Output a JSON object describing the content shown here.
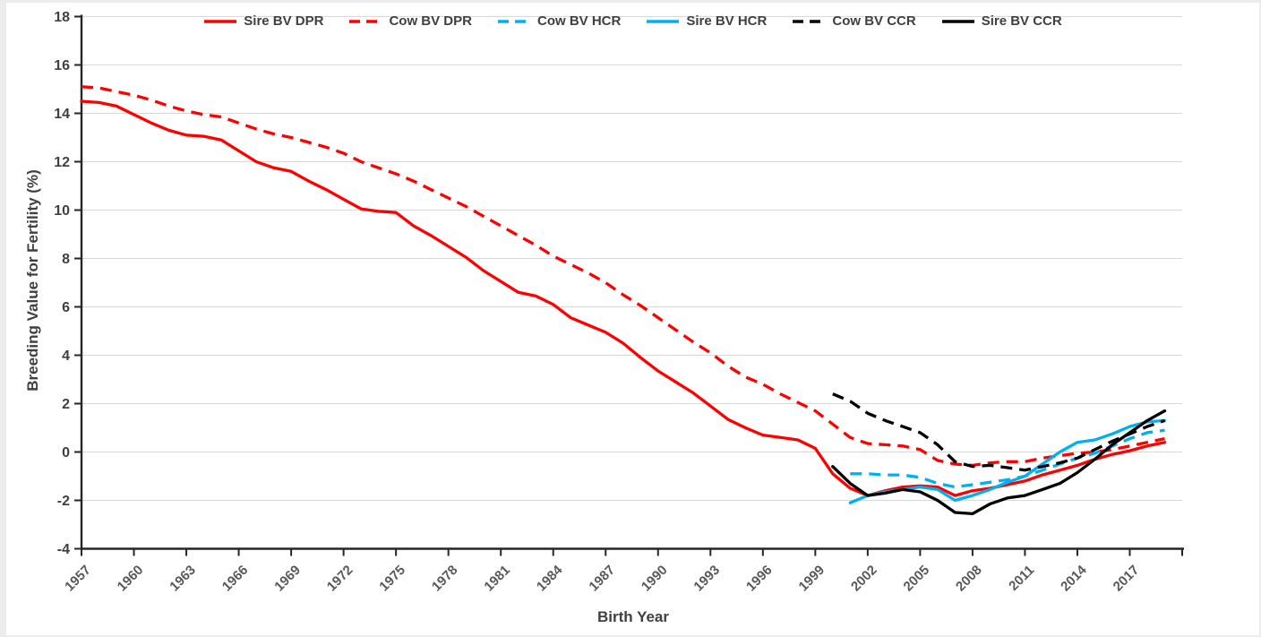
{
  "figure": {
    "background": "#ffffff",
    "border_color": "#ececec"
  },
  "chart_data": {
    "type": "line",
    "title": "",
    "xlabel": "Birth Year",
    "ylabel": "Breeding Value for Fertility (%)",
    "xlim": [
      1957,
      2020
    ],
    "ylim": [
      -4,
      18
    ],
    "ytick_step": 2,
    "yticks": [
      -4,
      -2,
      0,
      2,
      4,
      6,
      8,
      10,
      12,
      14,
      16,
      18
    ],
    "xticks": [
      1957,
      1960,
      1963,
      1966,
      1969,
      1972,
      1975,
      1978,
      1981,
      1984,
      1987,
      1990,
      1993,
      1996,
      1999,
      2002,
      2005,
      2008,
      2011,
      2014,
      2017
    ],
    "grid": "horizontal",
    "gridline_color": "#d9d9d9",
    "axis_color": "#262626",
    "ytick_label_color": "#404040",
    "xtick_label_color": "#595959",
    "legend_position": "top",
    "series": [
      {
        "name": "Sire BV DPR",
        "color": "#ff0000",
        "dash": "solid",
        "start_year": 1957,
        "values": [
          14.5,
          14.45,
          14.3,
          13.95,
          13.6,
          13.3,
          13.1,
          13.05,
          12.9,
          12.45,
          12.0,
          11.75,
          11.6,
          11.2,
          10.85,
          10.45,
          10.05,
          9.95,
          9.9,
          9.35,
          8.95,
          8.5,
          8.05,
          7.5,
          7.05,
          6.6,
          6.45,
          6.1,
          5.55,
          5.25,
          4.95,
          4.5,
          3.9,
          3.35,
          2.9,
          2.45,
          1.9,
          1.35,
          1.0,
          0.7,
          0.6,
          0.5,
          0.15,
          -0.9,
          -1.5,
          -1.8,
          -1.6,
          -1.45,
          -1.4,
          -1.45,
          -1.8,
          -1.6,
          -1.5,
          -1.35,
          -1.2,
          -0.95,
          -0.75,
          -0.55,
          -0.3,
          -0.1,
          0.05,
          0.25,
          0.4
        ]
      },
      {
        "name": "Cow BV DPR",
        "color": "#ff0000",
        "dash": "dashed",
        "start_year": 1957,
        "values": [
          15.1,
          15.05,
          14.9,
          14.75,
          14.55,
          14.3,
          14.1,
          13.95,
          13.85,
          13.6,
          13.35,
          13.15,
          13.0,
          12.8,
          12.6,
          12.35,
          12.0,
          11.75,
          11.5,
          11.2,
          10.85,
          10.5,
          10.15,
          9.75,
          9.35,
          8.95,
          8.55,
          8.1,
          7.75,
          7.4,
          7.0,
          6.5,
          6.05,
          5.55,
          5.05,
          4.55,
          4.1,
          3.55,
          3.1,
          2.8,
          2.4,
          2.05,
          1.7,
          1.15,
          0.6,
          0.35,
          0.3,
          0.25,
          0.1,
          -0.35,
          -0.5,
          -0.55,
          -0.45,
          -0.4,
          -0.4,
          -0.25,
          -0.15,
          -0.05,
          0.0,
          0.1,
          0.25,
          0.4,
          0.55
        ]
      },
      {
        "name": "Cow BV HCR",
        "color": "#00b0f0",
        "dash": "dashed",
        "start_year": 2001,
        "values": [
          -0.9,
          -0.9,
          -0.95,
          -0.95,
          -1.05,
          -1.3,
          -1.45,
          -1.35,
          -1.25,
          -1.15,
          -1.0,
          -0.75,
          -0.5,
          -0.25,
          -0.05,
          0.25,
          0.55,
          0.8,
          0.9
        ]
      },
      {
        "name": "Sire BV HCR",
        "color": "#00b0f0",
        "dash": "solid",
        "start_year": 2001,
        "values": [
          -2.1,
          -1.8,
          -1.65,
          -1.55,
          -1.45,
          -1.55,
          -2.0,
          -1.8,
          -1.55,
          -1.25,
          -1.0,
          -0.5,
          0.0,
          0.4,
          0.5,
          0.75,
          1.05,
          1.25,
          1.3
        ]
      },
      {
        "name": "Cow BV CCR",
        "color": "#000000",
        "dash": "dashed",
        "start_year": 2000,
        "values": [
          2.4,
          2.1,
          1.6,
          1.3,
          1.05,
          0.8,
          0.3,
          -0.4,
          -0.6,
          -0.55,
          -0.65,
          -0.75,
          -0.6,
          -0.45,
          -0.25,
          0.1,
          0.45,
          0.75,
          1.05,
          1.3
        ]
      },
      {
        "name": "Sire BV CCR",
        "color": "#000000",
        "dash": "solid",
        "start_year": 2000,
        "values": [
          -0.6,
          -1.3,
          -1.8,
          -1.7,
          -1.55,
          -1.65,
          -2.0,
          -2.5,
          -2.55,
          -2.15,
          -1.9,
          -1.8,
          -1.55,
          -1.3,
          -0.85,
          -0.3,
          0.3,
          0.8,
          1.3,
          1.7
        ]
      }
    ]
  }
}
